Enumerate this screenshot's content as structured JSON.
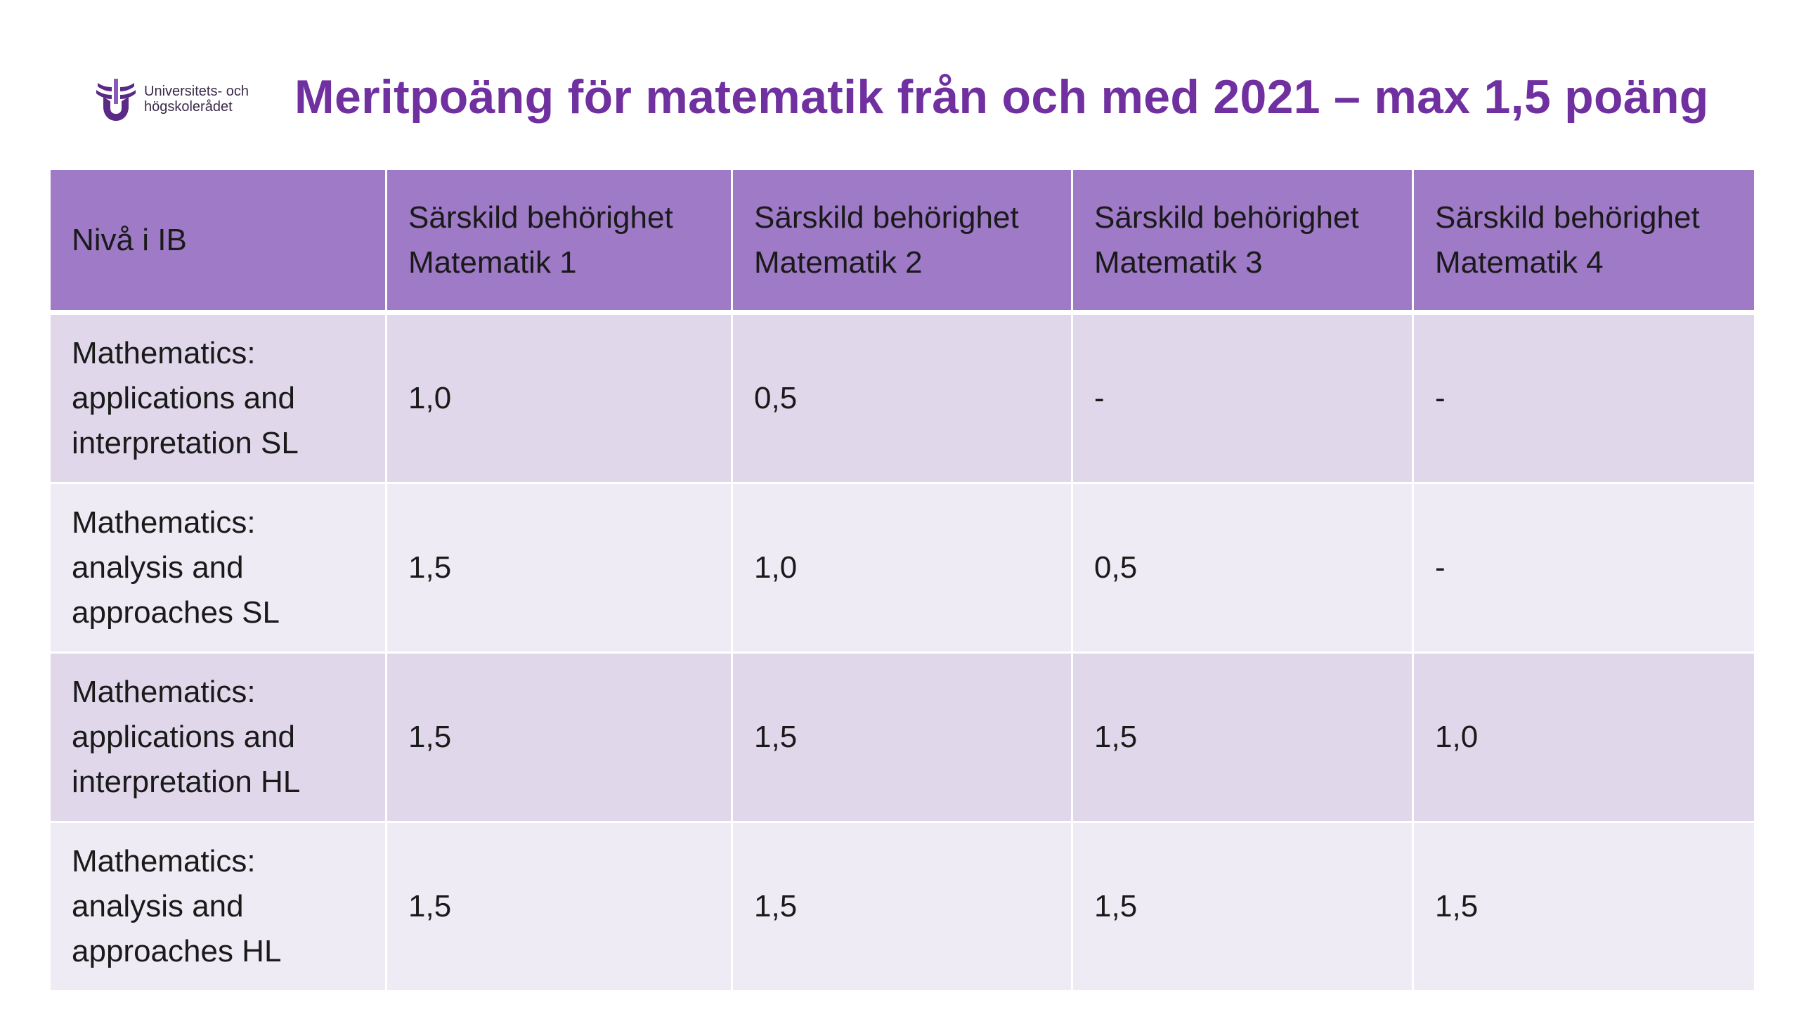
{
  "logo": {
    "line1": "Universitets- och",
    "line2": "högskolerådet",
    "icon": "uhr-wings-logo"
  },
  "title": "Meritpoäng för matematik från och med 2021  – max 1,5 poäng",
  "table": {
    "headers": [
      {
        "line1": "Nivå i IB",
        "line2": ""
      },
      {
        "line1": "Särskild behörighet",
        "line2": "Matematik 1"
      },
      {
        "line1": "Särskild behörighet",
        "line2": "Matematik 2"
      },
      {
        "line1": "Särskild behörighet",
        "line2": "Matematik 3"
      },
      {
        "line1": "Särskild behörighet",
        "line2": "Matematik 4"
      }
    ],
    "rows": [
      {
        "level": [
          "Mathematics:",
          "applications and",
          "interpretation SL"
        ],
        "values": [
          "1,0",
          "0,5",
          "-",
          "-"
        ]
      },
      {
        "level": [
          "Mathematics:",
          "analysis and",
          "approaches SL"
        ],
        "values": [
          "1,5",
          "1,0",
          "0,5",
          "-"
        ]
      },
      {
        "level": [
          "Mathematics:",
          "applications and",
          "interpretation HL"
        ],
        "values": [
          "1,5",
          "1,5",
          "1,5",
          "1,0"
        ]
      },
      {
        "level": [
          "Mathematics:",
          "analysis and",
          "approaches HL"
        ],
        "values": [
          "1,5",
          "1,5",
          "1,5",
          "1,5"
        ]
      }
    ]
  },
  "colors": {
    "title": "#7030a0",
    "header_bg": "#9e7ac7",
    "row_odd_bg": "#e0d8ea",
    "row_even_bg": "#efebf4"
  }
}
